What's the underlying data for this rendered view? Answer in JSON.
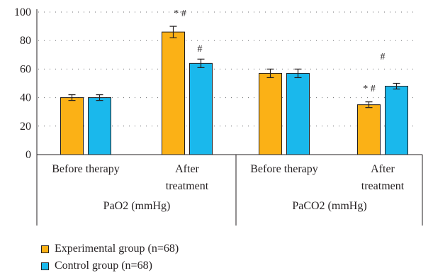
{
  "chart_data": {
    "type": "bar",
    "groups": [
      {
        "label": "PaO2 (mmHg)",
        "categories": [
          {
            "label": [
              "Before therapy"
            ],
            "values": [
              40,
              40
            ],
            "errors": [
              2,
              2
            ],
            "annotations": [
              "",
              ""
            ]
          },
          {
            "label": [
              "After",
              "treatment"
            ],
            "values": [
              86,
              64
            ],
            "errors": [
              4,
              3
            ],
            "annotations": [
              "* #",
              "#"
            ]
          }
        ]
      },
      {
        "label": "PaCO2 (mmHg)",
        "categories": [
          {
            "label": [
              "Before therapy"
            ],
            "values": [
              57,
              57
            ],
            "errors": [
              3,
              3
            ],
            "annotations": [
              "",
              ""
            ]
          },
          {
            "label": [
              "After",
              "treatment"
            ],
            "values": [
              35,
              48
            ],
            "errors": [
              2,
              2
            ],
            "annotations": [
              "* #",
              "#"
            ]
          }
        ]
      }
    ],
    "series": [
      {
        "name": "Experimental group (n=68)",
        "color": "#fbb116"
      },
      {
        "name": "Control group (n=68)",
        "color": "#1ab8ec"
      }
    ],
    "ylim": [
      0,
      100
    ],
    "yticks": [
      "0",
      "20",
      "40",
      "60",
      "80",
      "100"
    ],
    "grid": true
  },
  "legend": {
    "items": [
      {
        "label": "Experimental group (n=68)",
        "color": "#fbb116"
      },
      {
        "label": "Control group (n=68)",
        "color": "#1ab8ec"
      }
    ]
  }
}
